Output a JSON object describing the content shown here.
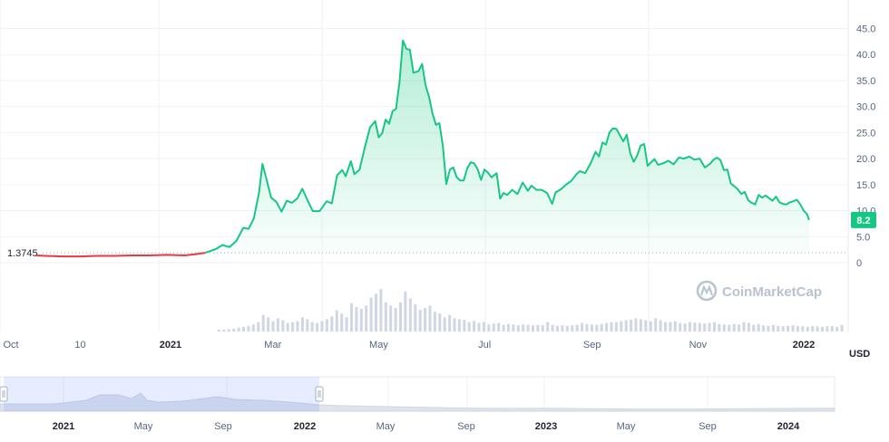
{
  "chart_data": {
    "type": "area",
    "currency": "USD",
    "start_value_label": "1.3745",
    "last_value_label": "8.2",
    "watermark": "CoinMarketCap",
    "y_ticks": [
      "0",
      "5.0",
      "10.0",
      "15.0",
      "20.0",
      "25.0",
      "30.0",
      "35.0",
      "40.0",
      "45.0"
    ],
    "ylim": [
      0,
      47
    ],
    "x_ticks": [
      {
        "label": "Oct",
        "bold": false,
        "day": 0
      },
      {
        "label": "10",
        "bold": false,
        "day": 40
      },
      {
        "label": "2021",
        "bold": true,
        "day": 92
      },
      {
        "label": "Mar",
        "bold": false,
        "day": 151
      },
      {
        "label": "May",
        "bold": false,
        "day": 212
      },
      {
        "label": "Jul",
        "bold": false,
        "day": 273
      },
      {
        "label": "Sep",
        "bold": false,
        "day": 335
      },
      {
        "label": "Nov",
        "bold": false,
        "day": 396
      },
      {
        "label": "2022",
        "bold": true,
        "day": 457
      }
    ],
    "xlim_days": [
      0,
      480
    ],
    "series": [
      {
        "points": [
          [
            14,
            1.4
          ],
          [
            20,
            1.3
          ],
          [
            30,
            1.2
          ],
          [
            40,
            1.2
          ],
          [
            50,
            1.3
          ],
          [
            60,
            1.3
          ],
          [
            70,
            1.4
          ],
          [
            80,
            1.4
          ],
          [
            90,
            1.5
          ],
          [
            100,
            1.4
          ],
          [
            106,
            1.6
          ],
          [
            112,
            1.9
          ],
          [
            118,
            2.6
          ],
          [
            122,
            3.4
          ],
          [
            126,
            3.0
          ],
          [
            130,
            4.2
          ],
          [
            134,
            6.7
          ],
          [
            137,
            6.5
          ],
          [
            140,
            8.5
          ],
          [
            143,
            13.4
          ],
          [
            145,
            19.0
          ],
          [
            147,
            16.5
          ],
          [
            150,
            12.5
          ],
          [
            153,
            11.7
          ],
          [
            156,
            9.8
          ],
          [
            159,
            11.9
          ],
          [
            162,
            11.5
          ],
          [
            165,
            12.3
          ],
          [
            168,
            14.2
          ],
          [
            171,
            12.0
          ],
          [
            174,
            9.9
          ],
          [
            178,
            9.9
          ],
          [
            182,
            11.8
          ],
          [
            185,
            11.4
          ],
          [
            188,
            16.8
          ],
          [
            191,
            17.8
          ],
          [
            193,
            16.6
          ],
          [
            196,
            19.5
          ],
          [
            198,
            17.0
          ],
          [
            201,
            17.9
          ],
          [
            204,
            22.1
          ],
          [
            207,
            26.0
          ],
          [
            210,
            27.2
          ],
          [
            212,
            24.1
          ],
          [
            214,
            24.9
          ],
          [
            216,
            27.5
          ],
          [
            218,
            26.7
          ],
          [
            220,
            29.1
          ],
          [
            222,
            29.6
          ],
          [
            224,
            34.7
          ],
          [
            226,
            42.7
          ],
          [
            228,
            41.1
          ],
          [
            230,
            40.9
          ],
          [
            232,
            36.5
          ],
          [
            235,
            36.8
          ],
          [
            237,
            38.2
          ],
          [
            239,
            34.1
          ],
          [
            241,
            31.9
          ],
          [
            243,
            28.7
          ],
          [
            245,
            26.5
          ],
          [
            247,
            26.8
          ],
          [
            249,
            22.4
          ],
          [
            251,
            15.1
          ],
          [
            253,
            17.9
          ],
          [
            255,
            18.3
          ],
          [
            257,
            16.4
          ],
          [
            259,
            15.8
          ],
          [
            261,
            15.8
          ],
          [
            263,
            18.1
          ],
          [
            265,
            19.3
          ],
          [
            267,
            19.1
          ],
          [
            269,
            18.0
          ],
          [
            271,
            15.9
          ],
          [
            273,
            17.9
          ],
          [
            275,
            17.3
          ],
          [
            277,
            16.4
          ],
          [
            280,
            17.2
          ],
          [
            282,
            12.3
          ],
          [
            284,
            13.4
          ],
          [
            286,
            13.0
          ],
          [
            289,
            14.0
          ],
          [
            292,
            13.2
          ],
          [
            295,
            15.4
          ],
          [
            298,
            13.8
          ],
          [
            300,
            14.8
          ],
          [
            303,
            14.0
          ],
          [
            306,
            14.0
          ],
          [
            309,
            13.4
          ],
          [
            312,
            11.3
          ],
          [
            314,
            13.5
          ],
          [
            317,
            14.1
          ],
          [
            320,
            15.0
          ],
          [
            323,
            15.7
          ],
          [
            326,
            17.0
          ],
          [
            328,
            17.6
          ],
          [
            331,
            17.2
          ],
          [
            334,
            19.0
          ],
          [
            337,
            21.3
          ],
          [
            339,
            20.4
          ],
          [
            341,
            23.1
          ],
          [
            343,
            22.7
          ],
          [
            345,
            25.0
          ],
          [
            347,
            25.8
          ],
          [
            349,
            25.7
          ],
          [
            351,
            24.5
          ],
          [
            353,
            23.3
          ],
          [
            355,
            24.6
          ],
          [
            357,
            21.0
          ],
          [
            359,
            19.4
          ],
          [
            361,
            20.6
          ],
          [
            363,
            22.5
          ],
          [
            365,
            22.8
          ],
          [
            367,
            18.6
          ],
          [
            369,
            19.3
          ],
          [
            371,
            19.9
          ],
          [
            373,
            18.8
          ],
          [
            376,
            19.1
          ],
          [
            379,
            19.6
          ],
          [
            382,
            18.9
          ],
          [
            385,
            20.2
          ],
          [
            388,
            20.0
          ],
          [
            391,
            20.4
          ],
          [
            394,
            19.8
          ],
          [
            397,
            20.0
          ],
          [
            400,
            18.3
          ],
          [
            403,
            19.0
          ],
          [
            405,
            19.8
          ],
          [
            407,
            20.2
          ],
          [
            409,
            19.7
          ],
          [
            411,
            17.8
          ],
          [
            413,
            17.9
          ],
          [
            415,
            15.2
          ],
          [
            417,
            14.7
          ],
          [
            419,
            14.1
          ],
          [
            421,
            13.2
          ],
          [
            423,
            13.6
          ],
          [
            425,
            12.0
          ],
          [
            427,
            11.5
          ],
          [
            429,
            11.2
          ],
          [
            431,
            13.0
          ],
          [
            433,
            12.5
          ],
          [
            435,
            12.9
          ],
          [
            437,
            12.4
          ],
          [
            439,
            11.9
          ],
          [
            441,
            12.7
          ],
          [
            443,
            11.6
          ],
          [
            445,
            11.3
          ],
          [
            447,
            11.2
          ],
          [
            449,
            11.6
          ],
          [
            451,
            11.8
          ],
          [
            453,
            12.1
          ],
          [
            455,
            11.2
          ],
          [
            457,
            10.0
          ],
          [
            459,
            9.3
          ],
          [
            460,
            8.2
          ]
        ]
      }
    ],
    "volume_bars": [
      0.04,
      0.04,
      0.05,
      0.06,
      0.08,
      0.1,
      0.12,
      0.15,
      0.2,
      0.35,
      0.3,
      0.22,
      0.28,
      0.24,
      0.18,
      0.2,
      0.22,
      0.3,
      0.26,
      0.2,
      0.18,
      0.22,
      0.26,
      0.32,
      0.45,
      0.38,
      0.3,
      0.6,
      0.52,
      0.48,
      0.55,
      0.72,
      0.8,
      0.9,
      0.62,
      0.55,
      0.5,
      0.62,
      0.85,
      0.7,
      0.58,
      0.46,
      0.5,
      0.55,
      0.42,
      0.38,
      0.3,
      0.35,
      0.28,
      0.26,
      0.25,
      0.2,
      0.22,
      0.18,
      0.2,
      0.15,
      0.17,
      0.18,
      0.14,
      0.16,
      0.15,
      0.13,
      0.15,
      0.14,
      0.13,
      0.14,
      0.13,
      0.2,
      0.14,
      0.12,
      0.13,
      0.12,
      0.13,
      0.14,
      0.18,
      0.16,
      0.15,
      0.14,
      0.16,
      0.18,
      0.2,
      0.2,
      0.22,
      0.24,
      0.25,
      0.28,
      0.26,
      0.24,
      0.22,
      0.28,
      0.24,
      0.2,
      0.2,
      0.22,
      0.18,
      0.17,
      0.2,
      0.19,
      0.18,
      0.17,
      0.18,
      0.2,
      0.16,
      0.15,
      0.14,
      0.16,
      0.15,
      0.2,
      0.18,
      0.14,
      0.16,
      0.13,
      0.12,
      0.14,
      0.12,
      0.11,
      0.12,
      0.13,
      0.12,
      0.11,
      0.1,
      0.12,
      0.11,
      0.1,
      0.11,
      0.12,
      0.1,
      0.14
    ],
    "navigator_ticks": [
      {
        "label": "2021",
        "bold": true,
        "x": 70
      },
      {
        "label": "May",
        "bold": false,
        "x": 158
      },
      {
        "label": "Sep",
        "bold": false,
        "x": 246
      },
      {
        "label": "2022",
        "bold": true,
        "x": 336
      },
      {
        "label": "May",
        "bold": false,
        "x": 425
      },
      {
        "label": "Sep",
        "bold": false,
        "x": 514
      },
      {
        "label": "2023",
        "bold": true,
        "x": 602
      },
      {
        "label": "May",
        "bold": false,
        "x": 690
      },
      {
        "label": "Sep",
        "bold": false,
        "x": 780
      },
      {
        "label": "2024",
        "bold": true,
        "x": 869
      }
    ]
  }
}
